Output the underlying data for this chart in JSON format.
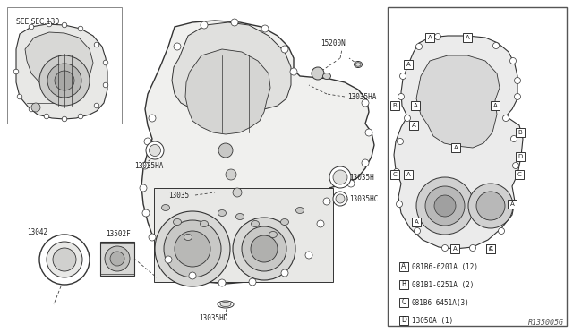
{
  "bg_color": "#ffffff",
  "line_color": "#333333",
  "text_color": "#222222",
  "ref_code": "R135005G",
  "see_sec": "SEE SEC.130",
  "legend_items": [
    {
      "key": "A",
      "desc": "081B6-6201A (12)"
    },
    {
      "key": "B",
      "desc": "081B1-0251A (2)"
    },
    {
      "key": "C",
      "desc": "081B6-6451A(3)"
    },
    {
      "key": "D",
      "desc": "13050A (1)"
    }
  ]
}
